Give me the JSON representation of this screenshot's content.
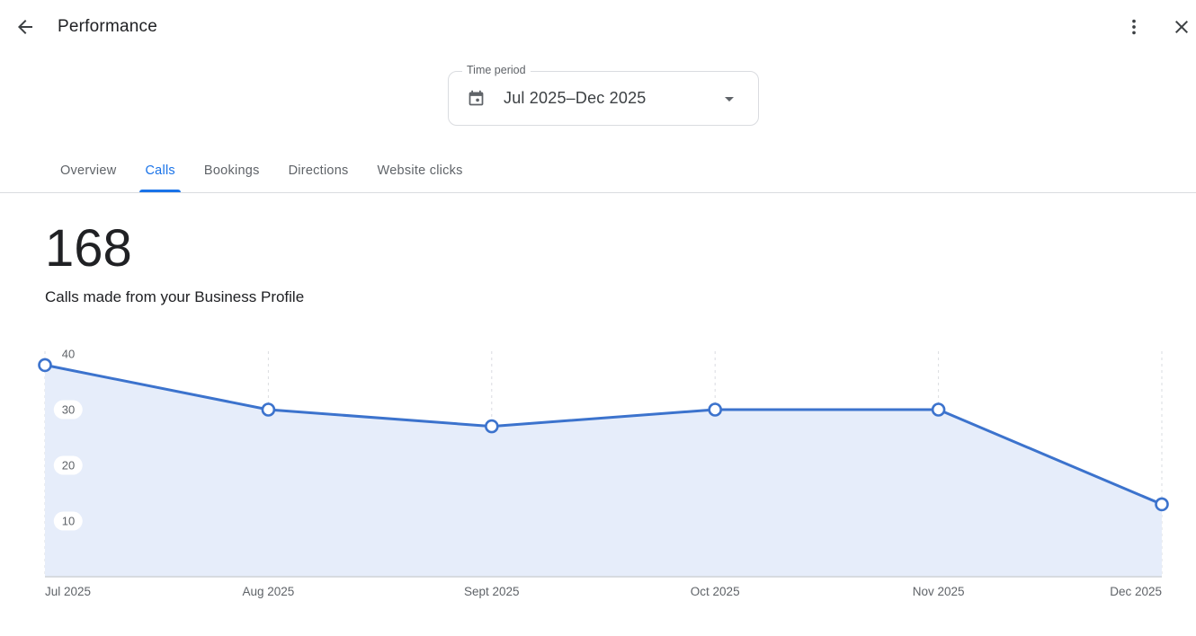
{
  "header": {
    "title": "Performance",
    "back_icon": "arrow-back",
    "more_icon": "kebab-menu",
    "close_icon": "close-x"
  },
  "time_period": {
    "label": "Time period",
    "value": "Jul 2025–Dec 2025",
    "icon": "calendar-icon",
    "dropdown_icon": "caret-down"
  },
  "tabs": [
    {
      "label": "Overview",
      "active": false
    },
    {
      "label": "Calls",
      "active": true
    },
    {
      "label": "Bookings",
      "active": false
    },
    {
      "label": "Directions",
      "active": false
    },
    {
      "label": "Website clicks",
      "active": false
    }
  ],
  "metric": {
    "value": "168",
    "description": "Calls made from your Business Profile"
  },
  "chart_data": {
    "type": "area",
    "title": "Calls made from your Business Profile",
    "categories": [
      "Jul 2025",
      "Aug 2025",
      "Sept 2025",
      "Oct 2025",
      "Nov 2025",
      "Dec 2025"
    ],
    "values": [
      38,
      30,
      27,
      30,
      30,
      13
    ],
    "series_name": "Calls",
    "total": 168,
    "y_ticks": [
      40,
      30,
      20,
      10
    ],
    "ylim": [
      0,
      41
    ],
    "grid": "dashed-vertical",
    "legend": "none",
    "line_color": "#3c73cd",
    "fill_color": "#e6edfa",
    "grid_color": "#dadce0",
    "axis_color": "#d3d7db",
    "marker_fill": "#ffffff"
  },
  "colors": {
    "accent": "#1a73e8",
    "divider": "#dadce0",
    "text_primary": "#202124",
    "text_secondary": "#5f6368"
  }
}
